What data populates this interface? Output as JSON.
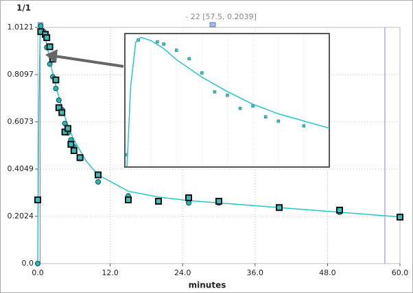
{
  "chart_data": {
    "type": "line",
    "title": "1/1",
    "x_label": "minutes",
    "annotation": "- 22 [57.5, 0.2039]",
    "xlim": [
      0,
      60
    ],
    "ylim": [
      0,
      1.0121
    ],
    "xticks": [
      {
        "value": 0,
        "label": "0.0"
      },
      {
        "value": 12,
        "label": "12.0"
      },
      {
        "value": 24,
        "label": "24.0"
      },
      {
        "value": 36,
        "label": "36.0"
      },
      {
        "value": 48,
        "label": "48.0"
      },
      {
        "value": 60,
        "label": "60.0"
      }
    ],
    "yticks": [
      {
        "value": 0,
        "label": "0.0"
      },
      0.2024,
      0.4049,
      0.6073,
      0.8097,
      1.0121
    ],
    "grid": true,
    "cursors": [
      0.4,
      57.5
    ],
    "series": [
      {
        "marker": "none",
        "color": "#1fc8c8",
        "x": [
          0,
          0.2,
          0.4,
          0.6,
          1,
          1.5,
          2,
          3,
          4,
          5,
          6,
          8,
          10,
          15,
          20,
          25,
          30,
          40,
          50,
          60
        ],
        "values": [
          0,
          0.7,
          0.98,
          1.01,
          0.99,
          0.94,
          0.87,
          0.76,
          0.67,
          0.59,
          0.53,
          0.44,
          0.38,
          0.31,
          0.285,
          0.27,
          0.26,
          0.24,
          0.22,
          0.2
        ]
      },
      {
        "marker": "circle",
        "color": "#2ab5b5",
        "x": [
          0,
          0.5,
          1,
          1.5,
          2,
          2.5,
          3,
          3.5,
          4,
          4.5,
          5,
          5.5,
          6,
          7,
          10,
          15,
          20,
          25,
          30,
          40,
          50,
          60
        ],
        "values": [
          0,
          1.018,
          0.994,
          0.926,
          0.855,
          0.8,
          0.75,
          0.7,
          0.66,
          0.6,
          0.56,
          0.53,
          0.5,
          0.45,
          0.35,
          0.29,
          0.27,
          0.26,
          0.26,
          0.24,
          0.22,
          0.196
        ]
      },
      {
        "marker": "square",
        "color": "#3cbcbc",
        "x": [
          0,
          0.5,
          1.25,
          1.5,
          2,
          2.5,
          3,
          3.5,
          4,
          4.5,
          5,
          5.5,
          6,
          7,
          10,
          15,
          20,
          25,
          30,
          40,
          50,
          60
        ],
        "values": [
          0.273,
          0.994,
          0.982,
          0.968,
          0.929,
          0.876,
          0.787,
          0.668,
          0.647,
          0.564,
          0.579,
          0.511,
          0.484,
          0.454,
          0.38,
          0.273,
          0.267,
          0.282,
          0.267,
          0.24,
          0.229,
          0.199
        ]
      }
    ],
    "inset": {
      "xlim": [
        0,
        8
      ],
      "ylim": [
        0.2,
        1.03
      ]
    }
  }
}
